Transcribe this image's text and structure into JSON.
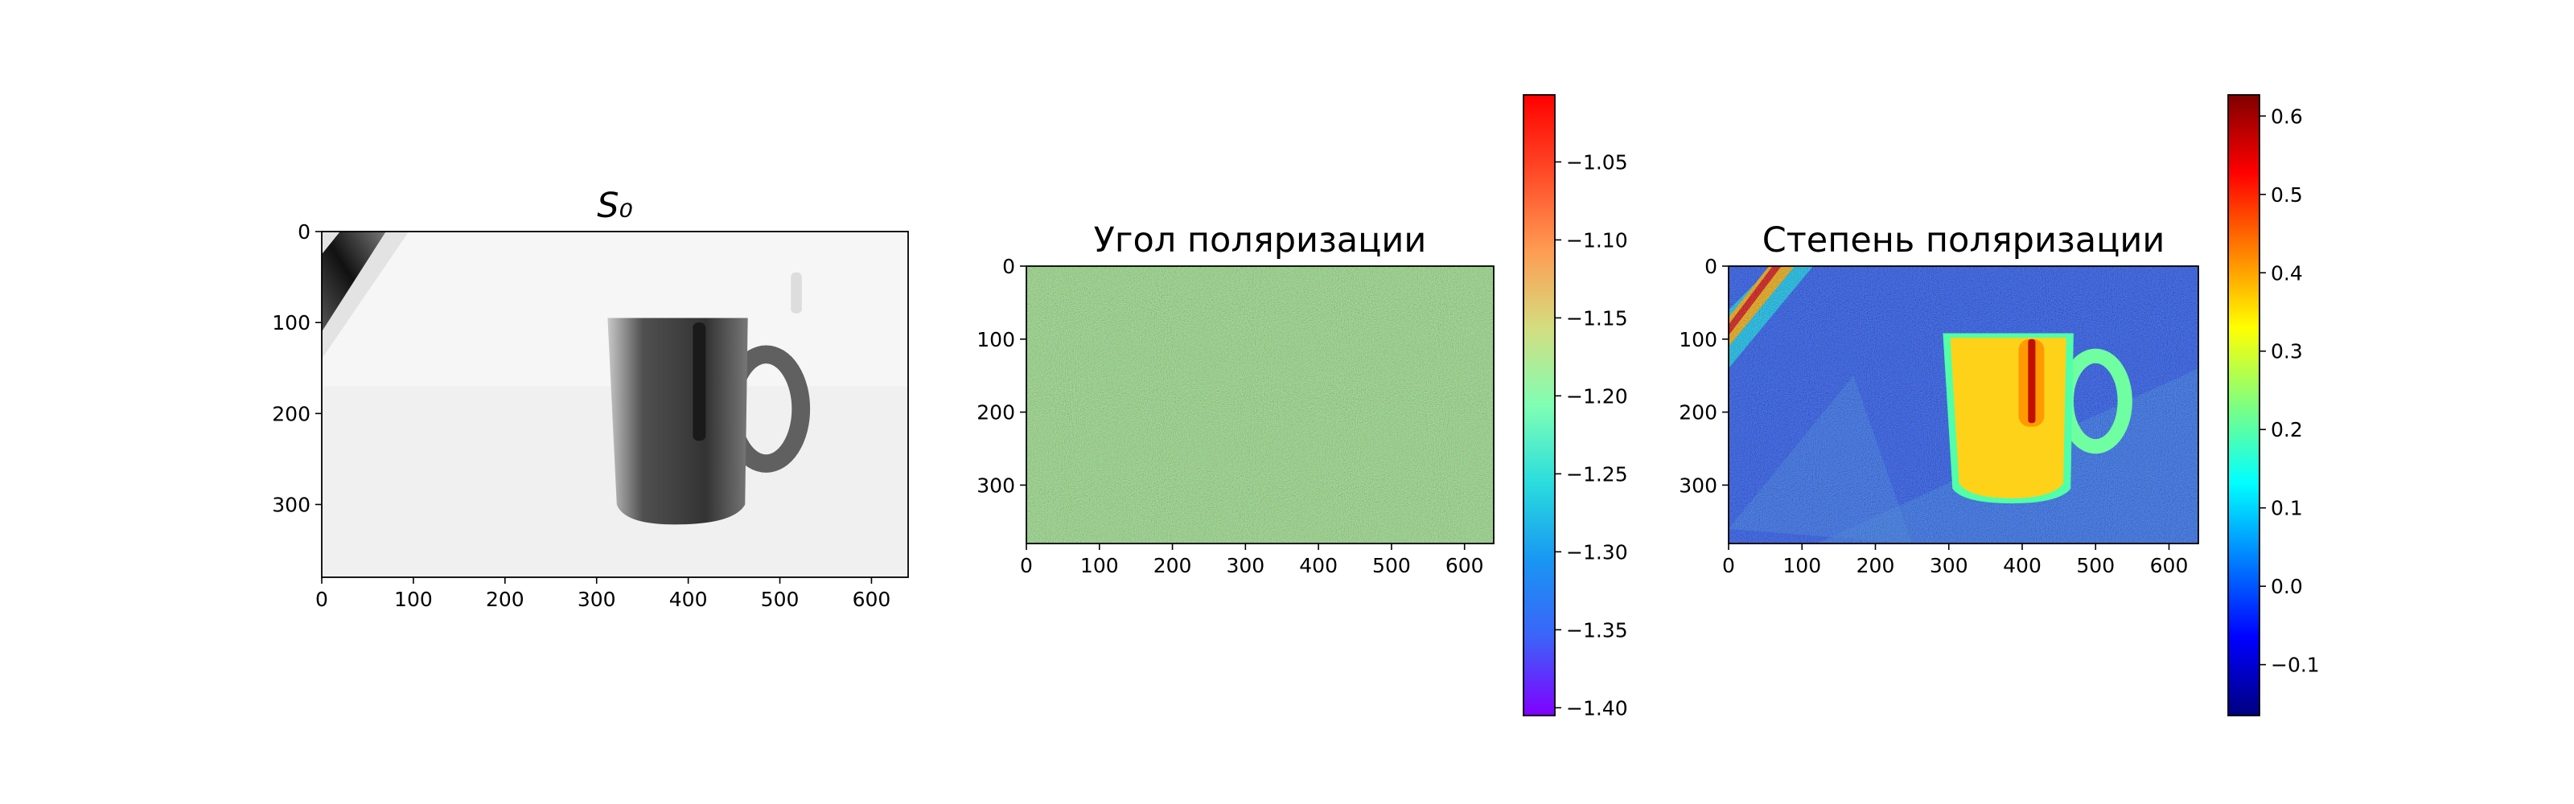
{
  "chart_data": [
    {
      "type": "image",
      "title": "S₀",
      "xlim": [
        0,
        640
      ],
      "ylim": [
        380,
        0
      ],
      "xticks": [
        0,
        100,
        200,
        300,
        400,
        500,
        600
      ],
      "yticks": [
        0,
        100,
        200,
        300
      ],
      "colormap": "gray"
    },
    {
      "type": "image",
      "title": "Угол поляризации",
      "xlim": [
        0,
        640
      ],
      "ylim": [
        380,
        0
      ],
      "xticks": [
        0,
        100,
        200,
        300,
        400,
        500,
        600
      ],
      "yticks": [
        0,
        100,
        200,
        300
      ],
      "colormap": "rainbow",
      "colorbar": {
        "clim": [
          -1.405,
          -1.007
        ],
        "ticks": [
          {
            "value": -1.05,
            "label": "−1.05"
          },
          {
            "value": -1.1,
            "label": "−1.10"
          },
          {
            "value": -1.15,
            "label": "−1.15"
          },
          {
            "value": -1.2,
            "label": "−1.20"
          },
          {
            "value": -1.25,
            "label": "−1.25"
          },
          {
            "value": -1.3,
            "label": "−1.30"
          },
          {
            "value": -1.35,
            "label": "−1.35"
          },
          {
            "value": -1.4,
            "label": "−1.40"
          }
        ]
      }
    },
    {
      "type": "image",
      "title": "Степень поляризации",
      "xlim": [
        0,
        640
      ],
      "ylim": [
        380,
        0
      ],
      "xticks": [
        0,
        100,
        200,
        300,
        400,
        500,
        600
      ],
      "yticks": [
        0,
        100,
        200,
        300
      ],
      "colormap": "jet",
      "colorbar": {
        "clim": [
          -0.165,
          0.627
        ],
        "ticks": [
          0.6,
          0.5,
          0.4,
          0.3,
          0.2,
          0.1,
          {
            "value": 0,
            "label": "0.0"
          },
          {
            "value": -0.1,
            "label": "−0.1"
          }
        ]
      }
    }
  ]
}
